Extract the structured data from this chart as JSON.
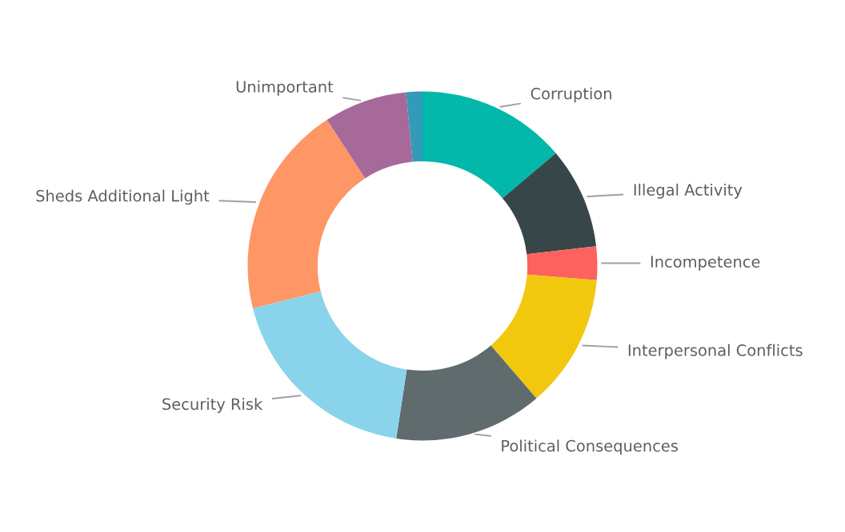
{
  "chart_data": {
    "type": "donut",
    "categories": [
      "Corruption",
      "Illegal Activity",
      "Incompetence",
      "Interpersonal Conflicts",
      "Political Consequences",
      "Security Risk",
      "Sheds Additional Light",
      "Unimportant",
      null
    ],
    "values": [
      13.8,
      9.4,
      3.1,
      12.4,
      13.7,
      18.7,
      19.7,
      7.7,
      1.5
    ],
    "colors": [
      "#01b8aa",
      "#374649",
      "#fd625e",
      "#f2c80f",
      "#5f6b6d",
      "#8ad4eb",
      "#fe9666",
      "#a66999",
      "#3599b8"
    ]
  }
}
